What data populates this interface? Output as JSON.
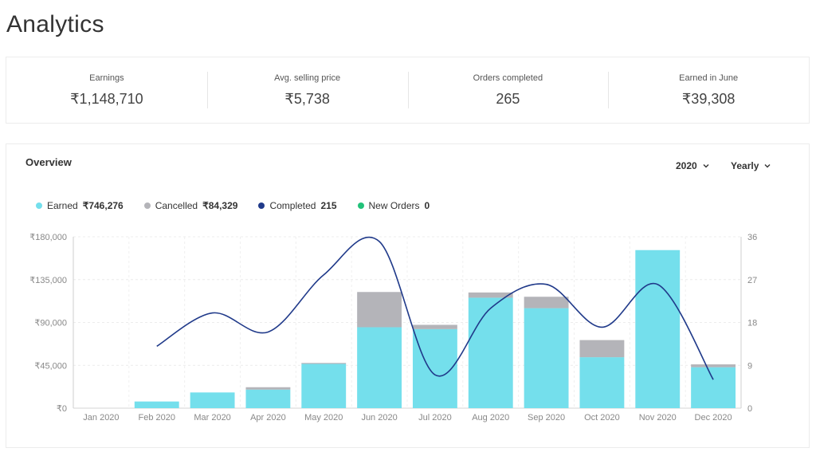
{
  "page": {
    "title": "Analytics"
  },
  "stats": [
    {
      "label": "Earnings",
      "value": "₹1,148,710"
    },
    {
      "label": "Avg. selling price",
      "value": "₹5,738"
    },
    {
      "label": "Orders completed",
      "value": "265"
    },
    {
      "label": "Earned in June",
      "value": "₹39,308"
    }
  ],
  "overview": {
    "title": "Overview",
    "year": "2020",
    "period": "Yearly",
    "legend": [
      {
        "label": "Earned",
        "value": "₹746,276",
        "color": "#74dfec"
      },
      {
        "label": "Cancelled",
        "value": "₹84,329",
        "color": "#b4b4b9"
      },
      {
        "label": "Completed",
        "value": "215",
        "color": "#203a8a"
      },
      {
        "label": "New Orders",
        "value": "0",
        "color": "#22c279"
      }
    ]
  },
  "chart_data": {
    "type": "bar",
    "categories": [
      "Jan 2020",
      "Feb 2020",
      "Mar 2020",
      "Apr 2020",
      "May 2020",
      "Jun 2020",
      "Jul 2020",
      "Aug 2020",
      "Sep 2020",
      "Oct 2020",
      "Nov 2020",
      "Dec 2020"
    ],
    "series": [
      {
        "name": "Earned",
        "type": "bar",
        "axis": "left",
        "stack": "orders",
        "color": "#74dfec",
        "values": [
          0,
          7000,
          16500,
          19500,
          46500,
          85000,
          83000,
          116000,
          105000,
          53500,
          166000,
          43000
        ]
      },
      {
        "name": "Cancelled",
        "type": "bar",
        "axis": "left",
        "stack": "orders",
        "color": "#b4b4b9",
        "values": [
          0,
          0,
          0,
          2500,
          1000,
          37000,
          4500,
          5500,
          12000,
          18000,
          0,
          3000
        ]
      },
      {
        "name": "Completed",
        "type": "line",
        "axis": "right",
        "smooth": true,
        "color": "#203a8a",
        "values": [
          null,
          13,
          20,
          16,
          28,
          35,
          7,
          21,
          26,
          17,
          26,
          6
        ]
      }
    ],
    "y_left": {
      "ticks": [
        "₹0",
        "₹45,000",
        "₹90,000",
        "₹135,000",
        "₹180,000"
      ],
      "min": 0,
      "max": 180000
    },
    "y_right": {
      "ticks": [
        "0",
        "9",
        "18",
        "27",
        "36"
      ],
      "min": 0,
      "max": 36
    },
    "grid": true
  }
}
